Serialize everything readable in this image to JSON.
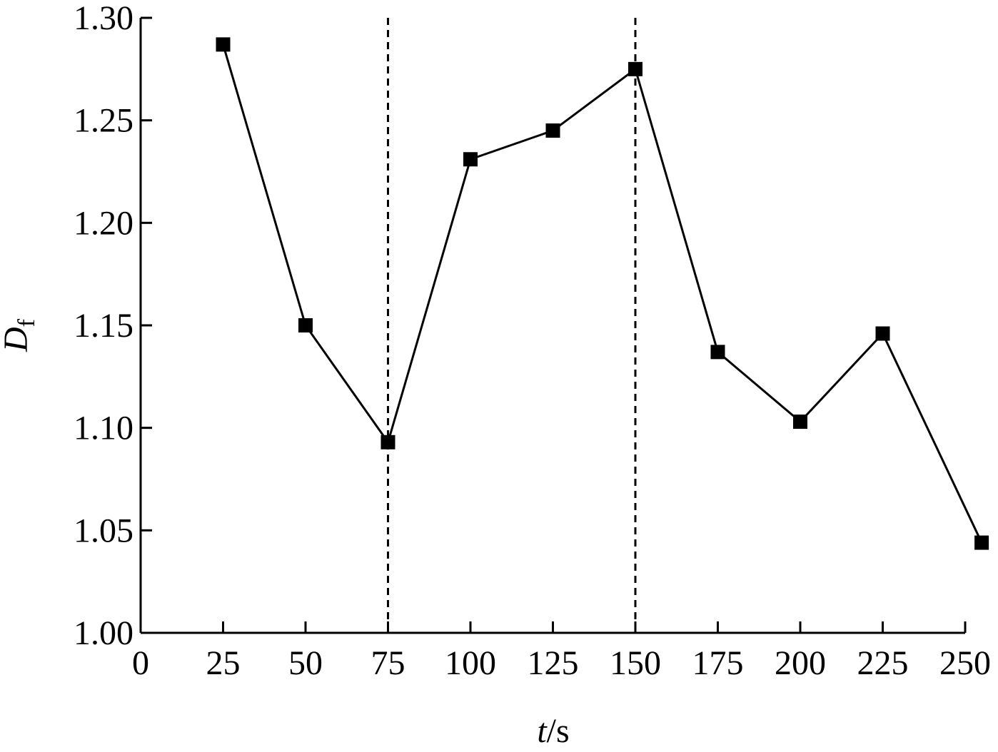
{
  "chart_data": {
    "type": "line",
    "x_label": {
      "symbol": "t",
      "unit": "/s"
    },
    "y_label": {
      "symbol": "D",
      "subscript": "f"
    },
    "x": [
      25,
      50,
      75,
      100,
      125,
      150,
      175,
      200,
      225,
      255
    ],
    "series": [
      {
        "color": "#000000",
        "values": [
          1.287,
          1.15,
          1.093,
          1.231,
          1.245,
          1.275,
          1.137,
          1.103,
          1.146,
          1.044
        ]
      }
    ],
    "xlim": [
      0,
      250
    ],
    "xticks": [
      0,
      25,
      50,
      75,
      100,
      125,
      150,
      175,
      200,
      225,
      250
    ],
    "ylim": [
      1.0,
      1.3
    ],
    "yticks": [
      {
        "value": 1.0,
        "label": "1.00"
      },
      1.05,
      {
        "value": 1.1,
        "label": "1.10"
      },
      1.15,
      {
        "value": 1.2,
        "label": "1.20"
      },
      1.25,
      {
        "value": 1.3,
        "label": "1.30"
      }
    ],
    "vlines": [
      75,
      150
    ],
    "marker": "square",
    "grid": false
  }
}
